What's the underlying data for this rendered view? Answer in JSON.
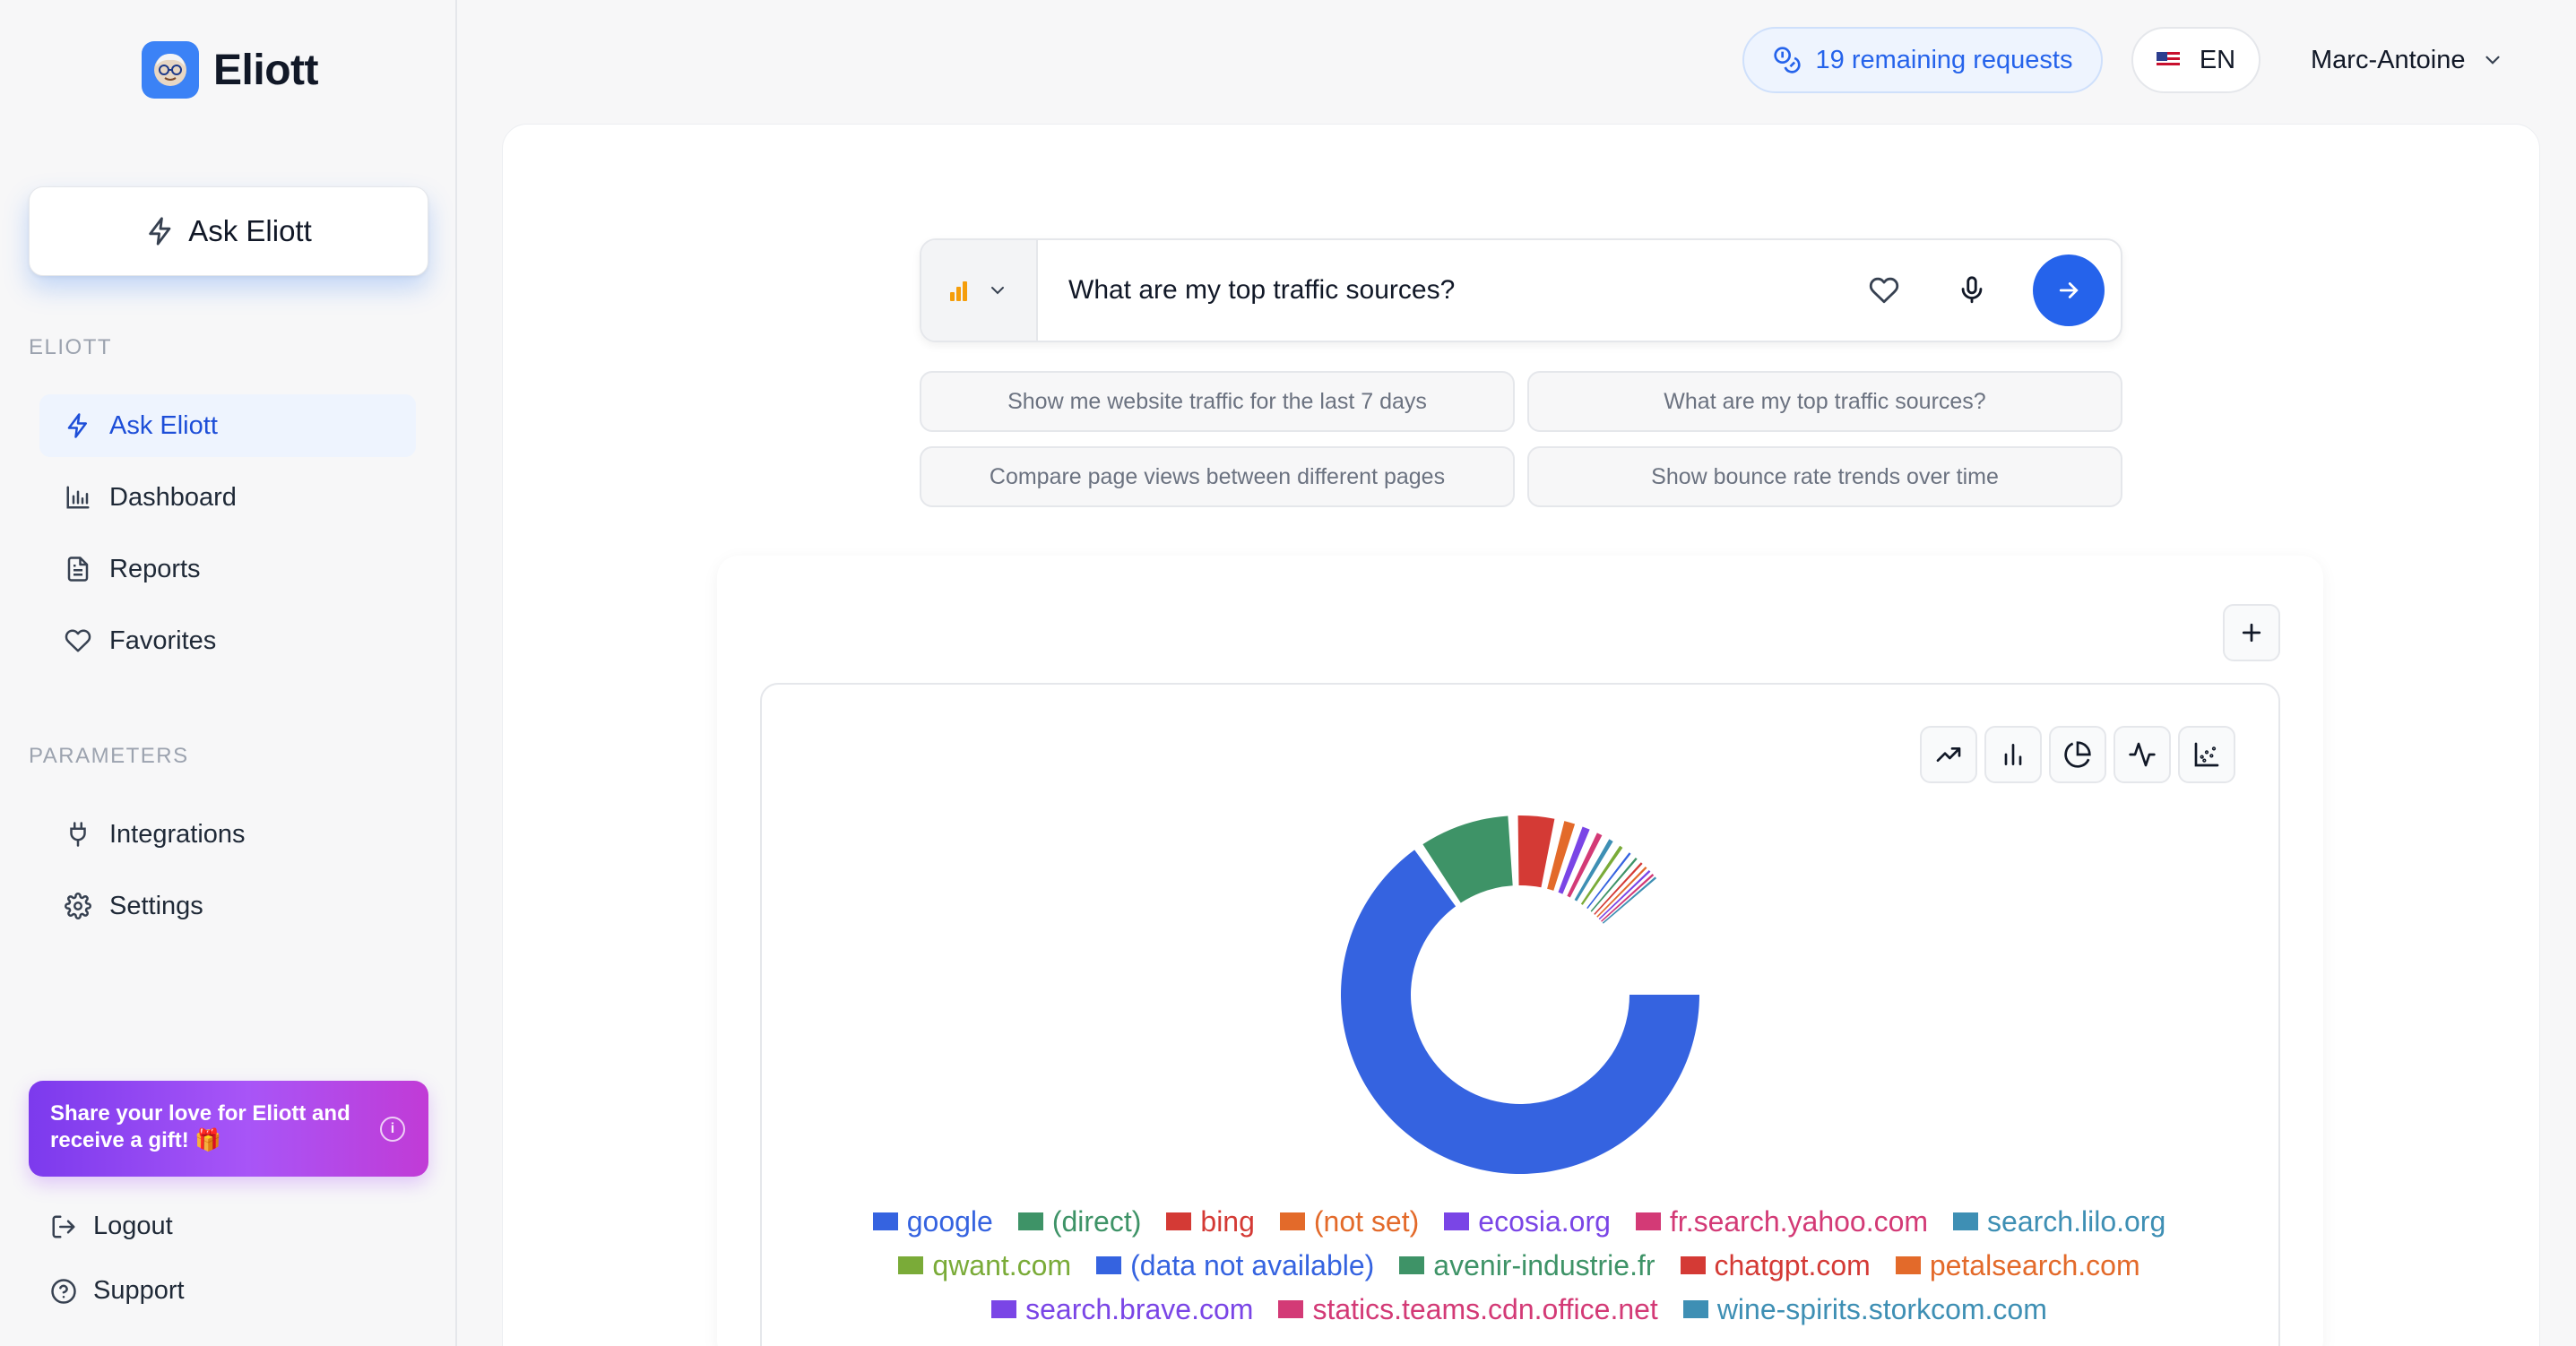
{
  "app": {
    "name": "Eliott"
  },
  "sidebar": {
    "ask_button": "Ask Eliott",
    "section_main": "ELIOTT",
    "section_params": "PARAMETERS",
    "nav": [
      {
        "label": "Ask Eliott",
        "icon": "bolt-icon",
        "active": true
      },
      {
        "label": "Dashboard",
        "icon": "bar-chart-icon"
      },
      {
        "label": "Reports",
        "icon": "document-icon"
      },
      {
        "label": "Favorites",
        "icon": "heart-icon"
      }
    ],
    "params": [
      {
        "label": "Integrations",
        "icon": "plug-icon"
      },
      {
        "label": "Settings",
        "icon": "gear-icon"
      }
    ],
    "gift_text": "Share your love for Eliott and receive a gift! 🎁",
    "logout": "Logout",
    "support": "Support"
  },
  "topbar": {
    "requests": "19 remaining requests",
    "lang": "EN",
    "user": "Marc-Antoine"
  },
  "search": {
    "value": "What are my top traffic sources?"
  },
  "suggestions": [
    "Show me website traffic for the last 7 days",
    "What are my top traffic sources?",
    "Compare page views between different pages",
    "Show bounce rate trends over time"
  ],
  "chart_types": [
    "trend-line-icon",
    "bar-chart-icon",
    "pie-chart-icon",
    "pulse-line-icon",
    "scatter-icon"
  ],
  "colors": {
    "accent": "#2563eb",
    "sidebar_active_bg": "#eef4fe"
  },
  "chart_data": {
    "type": "pie",
    "variant": "donut",
    "categories": [
      "google",
      "(direct)",
      "bing",
      "(not set)",
      "ecosia.org",
      "fr.search.yahoo.com",
      "search.lilo.org",
      "qwant.com",
      "(data not available)",
      "avenir-industrie.fr",
      "chatgpt.com",
      "petalsearch.com",
      "search.brave.com",
      "statics.teams.cdn.office.net",
      "wine-spirits.storkcom.com"
    ],
    "values": [
      68.5,
      9.0,
      4.0,
      1.6,
      1.3,
      1.1,
      1.0,
      0.9,
      0.6,
      0.5,
      0.4,
      0.3,
      0.3,
      0.2,
      0.2
    ],
    "colors": [
      "#3563e0",
      "#3e9367",
      "#d43a35",
      "#e36a2a",
      "#7a45e6",
      "#d33a76",
      "#3e8fb4",
      "#7aab38",
      "#3563e0",
      "#3e9367",
      "#d43a35",
      "#e36a2a",
      "#7a45e6",
      "#d33a76",
      "#3e8fb4"
    ],
    "legend_position": "bottom"
  }
}
